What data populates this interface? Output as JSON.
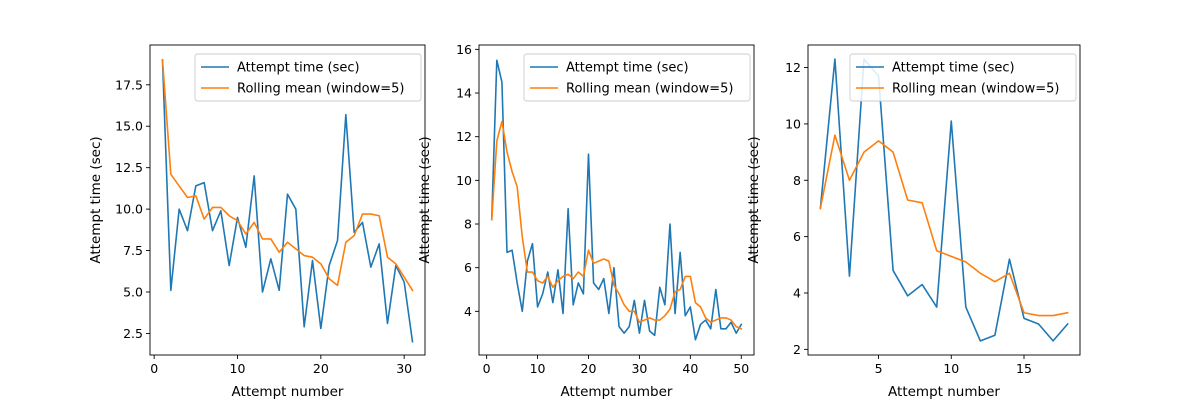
{
  "colors": {
    "series1": "#1f77b4",
    "series2": "#ff7f0e",
    "axis": "#000000",
    "legend_edge": "#cccccc"
  },
  "chart_data": [
    {
      "type": "line",
      "xlabel": "Attempt number",
      "ylabel": "Attempt time (sec)",
      "xlim": [
        -0.5,
        32.5
      ],
      "ylim": [
        1.2,
        19.9
      ],
      "xticks": [
        0,
        10,
        20,
        30
      ],
      "yticks": [
        2.5,
        5.0,
        7.5,
        10.0,
        12.5,
        15.0,
        17.5
      ],
      "ytick_labels": [
        "2.5",
        "5.0",
        "7.5",
        "10.0",
        "12.5",
        "15.0",
        "17.5"
      ],
      "grid": false,
      "legend": "top-right",
      "x": [
        1,
        2,
        3,
        4,
        5,
        6,
        7,
        8,
        9,
        10,
        11,
        12,
        13,
        14,
        15,
        16,
        17,
        18,
        19,
        20,
        21,
        22,
        23,
        24,
        25,
        26,
        27,
        28,
        29,
        30,
        31
      ],
      "series": [
        {
          "name": "Attempt time (sec)",
          "values": [
            19.0,
            5.1,
            10.0,
            8.7,
            11.4,
            11.6,
            8.7,
            9.9,
            6.6,
            9.5,
            7.7,
            12.0,
            5.0,
            7.0,
            5.1,
            10.9,
            10.0,
            2.9,
            6.9,
            2.8,
            6.6,
            8.1,
            15.7,
            8.6,
            9.2,
            6.5,
            7.9,
            3.1,
            6.6,
            5.6,
            2.0
          ]
        },
        {
          "name": "Rolling mean (window=5)",
          "values": [
            19.0,
            12.1,
            11.4,
            10.7,
            10.8,
            9.4,
            10.1,
            10.1,
            9.6,
            9.3,
            8.5,
            9.2,
            8.2,
            8.2,
            7.4,
            8.0,
            7.6,
            7.2,
            7.1,
            6.7,
            5.8,
            5.4,
            8.0,
            8.4,
            9.7,
            9.7,
            9.6,
            7.1,
            6.7,
            5.9,
            5.1
          ]
        }
      ]
    },
    {
      "type": "line",
      "xlabel": "Attempt number",
      "ylabel": "Attempt time (sec)",
      "xlim": [
        -1.5,
        52.5
      ],
      "ylim": [
        2.0,
        16.2
      ],
      "xticks": [
        0,
        10,
        20,
        30,
        40,
        50
      ],
      "yticks": [
        4,
        6,
        8,
        10,
        12,
        14,
        16
      ],
      "ytick_labels": [
        "4",
        "6",
        "8",
        "10",
        "12",
        "14",
        "16"
      ],
      "grid": false,
      "legend": "top-right",
      "x": [
        1,
        2,
        3,
        4,
        5,
        6,
        7,
        8,
        9,
        10,
        11,
        12,
        13,
        14,
        15,
        16,
        17,
        18,
        19,
        20,
        21,
        22,
        23,
        24,
        25,
        26,
        27,
        28,
        29,
        30,
        31,
        32,
        33,
        34,
        35,
        36,
        37,
        38,
        39,
        40,
        41,
        42,
        43,
        44,
        45,
        46,
        47,
        48,
        49,
        50
      ],
      "series": [
        {
          "name": "Attempt time (sec)",
          "values": [
            8.2,
            15.5,
            14.5,
            6.7,
            6.8,
            5.3,
            4.0,
            6.3,
            7.1,
            4.2,
            4.8,
            5.8,
            4.4,
            5.9,
            3.9,
            8.7,
            4.3,
            5.3,
            4.8,
            11.2,
            5.3,
            5.0,
            5.5,
            3.9,
            6.0,
            3.3,
            3.0,
            3.3,
            4.5,
            3.0,
            4.5,
            3.1,
            2.9,
            5.1,
            4.3,
            8.0,
            3.9,
            6.7,
            3.8,
            4.2,
            2.7,
            3.4,
            3.6,
            3.2,
            5.0,
            3.2,
            3.2,
            3.5,
            3.0,
            3.4
          ]
        },
        {
          "name": "Rolling mean (window=5)",
          "values": [
            8.2,
            11.8,
            12.7,
            11.3,
            10.4,
            9.7,
            7.4,
            5.8,
            5.8,
            5.4,
            5.3,
            5.6,
            5.1,
            5.4,
            5.6,
            5.7,
            5.5,
            5.8,
            5.6,
            6.8,
            6.2,
            6.3,
            6.4,
            6.3,
            5.2,
            4.8,
            4.3,
            4.0,
            4.0,
            3.5,
            3.6,
            3.7,
            3.6,
            3.6,
            3.8,
            4.1,
            4.9,
            5.0,
            5.6,
            5.6,
            4.4,
            4.2,
            3.7,
            3.5,
            3.6,
            3.7,
            3.7,
            3.6,
            3.3,
            3.2
          ]
        }
      ]
    },
    {
      "type": "line",
      "xlabel": "Attempt number",
      "ylabel": "Attempt time (sec)",
      "xlim": [
        0.15,
        18.85
      ],
      "ylim": [
        1.8,
        12.8
      ],
      "xticks": [
        5,
        10,
        15
      ],
      "yticks": [
        2,
        4,
        6,
        8,
        10,
        12
      ],
      "ytick_labels": [
        "2",
        "4",
        "6",
        "8",
        "10",
        "12"
      ],
      "grid": false,
      "legend": "top-right",
      "x": [
        1,
        2,
        3,
        4,
        5,
        6,
        7,
        8,
        9,
        10,
        11,
        12,
        13,
        14,
        15,
        16,
        17,
        18
      ],
      "series": [
        {
          "name": "Attempt time (sec)",
          "values": [
            7.0,
            12.3,
            4.6,
            12.3,
            11.7,
            4.8,
            3.9,
            4.3,
            3.5,
            10.1,
            3.5,
            2.3,
            2.5,
            5.2,
            3.1,
            2.9,
            2.3,
            2.9
          ]
        },
        {
          "name": "Rolling mean (window=5)",
          "values": [
            7.0,
            9.6,
            8.0,
            9.0,
            9.4,
            9.0,
            7.3,
            7.2,
            5.5,
            5.3,
            5.1,
            4.7,
            4.4,
            4.7,
            3.3,
            3.2,
            3.2,
            3.3
          ]
        }
      ]
    }
  ]
}
